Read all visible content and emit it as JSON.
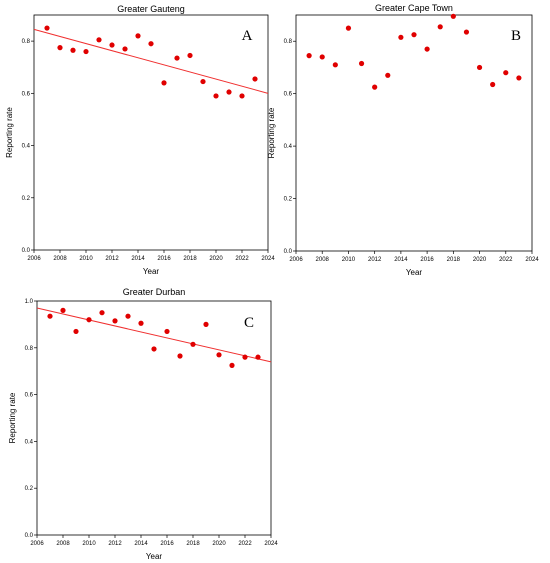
{
  "chart_data": [
    {
      "type": "scatter",
      "panel": "A",
      "title": "Greater Gauteng",
      "xlabel": "Year",
      "ylabel": "Reporting rate",
      "xlim": [
        2006,
        2024
      ],
      "ylim": [
        0.0,
        0.9
      ],
      "xticks": [
        "2006",
        "2008",
        "2010",
        "2012",
        "2014",
        "2016",
        "2018",
        "2020",
        "2022",
        "2024"
      ],
      "yticks": [
        "0.0",
        "0.2",
        "0.4",
        "0.6",
        "0.8"
      ],
      "trend_line": {
        "x": [
          2006,
          2024
        ],
        "y": [
          0.845,
          0.6
        ]
      },
      "x": [
        2007,
        2008,
        2009,
        2010,
        2011,
        2012,
        2013,
        2014,
        2015,
        2016,
        2017,
        2018,
        2019,
        2020,
        2021,
        2022,
        2023
      ],
      "y": [
        0.85,
        0.775,
        0.765,
        0.76,
        0.805,
        0.785,
        0.77,
        0.82,
        0.79,
        0.64,
        0.735,
        0.745,
        0.645,
        0.59,
        0.605,
        0.59,
        0.655
      ],
      "grid": false,
      "marker_color": "#e00000",
      "line_color": "#f03030"
    },
    {
      "type": "scatter",
      "panel": "B",
      "title": "Greater Cape Town",
      "xlabel": "Year",
      "ylabel": "Reporting rate",
      "xlim": [
        2006,
        2024
      ],
      "ylim": [
        0.0,
        0.9
      ],
      "xticks": [
        "2006",
        "2008",
        "2010",
        "2012",
        "2014",
        "2016",
        "2018",
        "2020",
        "2022",
        "2024"
      ],
      "yticks": [
        "0.0",
        "0.2",
        "0.4",
        "0.6",
        "0.8"
      ],
      "trend_line": null,
      "x": [
        2007,
        2008,
        2009,
        2010,
        2011,
        2012,
        2013,
        2014,
        2015,
        2016,
        2017,
        2018,
        2019,
        2020,
        2021,
        2022,
        2023
      ],
      "y": [
        0.745,
        0.74,
        0.71,
        0.85,
        0.715,
        0.625,
        0.67,
        0.815,
        0.825,
        0.77,
        0.855,
        0.895,
        0.835,
        0.7,
        0.635,
        0.68,
        0.66
      ],
      "grid": false,
      "marker_color": "#e00000"
    },
    {
      "type": "scatter",
      "panel": "C",
      "title": "Greater Durban",
      "xlabel": "Year",
      "ylabel": "Reporting rate",
      "xlim": [
        2006,
        2024
      ],
      "ylim": [
        0.0,
        1.0
      ],
      "xticks": [
        "2006",
        "2008",
        "2010",
        "2012",
        "2014",
        "2016",
        "2018",
        "2020",
        "2022",
        "2024"
      ],
      "yticks": [
        "0.0",
        "0.2",
        "0.4",
        "0.6",
        "0.8",
        "1.0"
      ],
      "trend_line": {
        "x": [
          2006,
          2024
        ],
        "y": [
          0.97,
          0.74
        ]
      },
      "x": [
        2007,
        2008,
        2009,
        2010,
        2011,
        2012,
        2013,
        2014,
        2015,
        2016,
        2017,
        2018,
        2019,
        2020,
        2021,
        2022,
        2023
      ],
      "y": [
        0.935,
        0.96,
        0.87,
        0.92,
        0.95,
        0.915,
        0.935,
        0.905,
        0.795,
        0.87,
        0.765,
        0.815,
        0.9,
        0.77,
        0.725,
        0.76,
        0.76
      ],
      "grid": false,
      "marker_color": "#e00000",
      "line_color": "#f03030"
    }
  ]
}
